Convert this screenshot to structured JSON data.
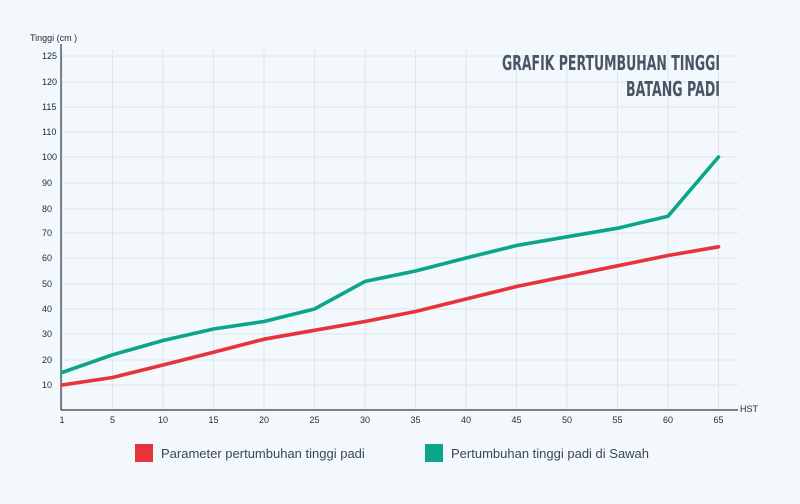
{
  "chart_data": {
    "type": "line",
    "title": "GRAFIK PERTUMBUHAN TINGGI",
    "subtitle": "BATANG PADI",
    "ylabel": "Tinggi (cm )",
    "xlabel": "HST",
    "x": [
      1,
      5,
      10,
      15,
      20,
      25,
      30,
      35,
      40,
      45,
      50,
      55,
      60,
      65
    ],
    "x_ticks": [
      "1",
      "5",
      "10",
      "15",
      "20",
      "25",
      "30",
      "35",
      "40",
      "45",
      "50",
      "55",
      "60",
      "65"
    ],
    "y_ticks": [
      10,
      20,
      30,
      40,
      50,
      60,
      70,
      80,
      90,
      100,
      110,
      115,
      120,
      125
    ],
    "series": [
      {
        "name": "Parameter pertumbuhan tinggi padi",
        "color": "#e8333b",
        "values": [
          10,
          13,
          18,
          23,
          28,
          31.5,
          35,
          39,
          44,
          49,
          53,
          57,
          61,
          64.5
        ]
      },
      {
        "name": "Pertumbuhan tinggi padi di Sawah",
        "color": "#0aa58a",
        "values": [
          15,
          22,
          27.5,
          32,
          35,
          40,
          51,
          55,
          60,
          65,
          68.5,
          72,
          77,
          100
        ]
      }
    ],
    "grid": true,
    "legend_position": "bottom"
  }
}
